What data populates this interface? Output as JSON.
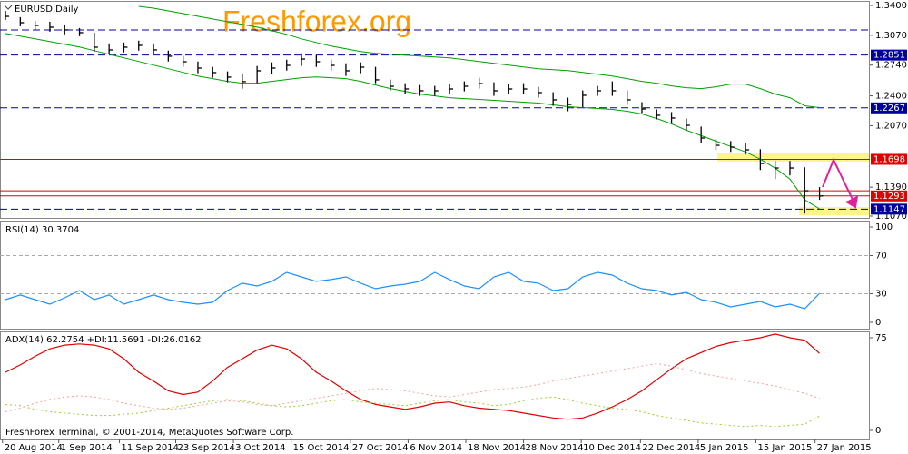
{
  "chart_data": [
    {
      "type": "ohlc",
      "title": "EURUSD,Daily",
      "watermark": "Freshforex.org",
      "color": "#000000",
      "high": [
        1.334,
        1.327,
        1.323,
        1.322,
        1.319,
        1.315,
        1.31,
        1.298,
        1.299,
        1.301,
        1.298,
        1.29,
        1.284,
        1.278,
        1.272,
        1.267,
        1.264,
        1.273,
        1.277,
        1.28,
        1.287,
        1.285,
        1.28,
        1.276,
        1.277,
        1.272,
        1.258,
        1.254,
        1.252,
        1.251,
        1.253,
        1.256,
        1.26,
        1.255,
        1.253,
        1.254,
        1.25,
        1.244,
        1.238,
        1.246,
        1.251,
        1.256,
        1.246,
        1.233,
        1.225,
        1.222,
        1.215,
        1.206,
        1.192,
        1.19,
        1.188,
        1.181,
        1.168,
        1.168,
        1.161,
        1.139
      ],
      "low": [
        1.324,
        1.317,
        1.313,
        1.311,
        1.308,
        1.306,
        1.289,
        1.286,
        1.288,
        1.29,
        1.286,
        1.278,
        1.272,
        1.265,
        1.26,
        1.255,
        1.248,
        1.254,
        1.264,
        1.268,
        1.273,
        1.272,
        1.268,
        1.262,
        1.265,
        1.254,
        1.246,
        1.242,
        1.24,
        1.24,
        1.242,
        1.245,
        1.248,
        1.24,
        1.242,
        1.242,
        1.238,
        1.229,
        1.223,
        1.227,
        1.24,
        1.24,
        1.23,
        1.221,
        1.214,
        1.21,
        1.202,
        1.188,
        1.18,
        1.178,
        1.175,
        1.158,
        1.148,
        1.152,
        1.1098,
        1.125
      ],
      "close": [
        1.3279,
        1.3209,
        1.3179,
        1.3159,
        1.3129,
        1.3099,
        1.2938,
        1.2908,
        1.2938,
        1.2958,
        1.2908,
        1.2838,
        1.2777,
        1.2707,
        1.2657,
        1.2607,
        1.2557,
        1.2677,
        1.2707,
        1.2737,
        1.2807,
        1.2777,
        1.2737,
        1.2677,
        1.2717,
        1.2577,
        1.2506,
        1.2476,
        1.2456,
        1.2456,
        1.2476,
        1.2506,
        1.2536,
        1.2456,
        1.2476,
        1.2476,
        1.2436,
        1.2356,
        1.2305,
        1.2406,
        1.2456,
        1.2456,
        1.2356,
        1.2255,
        1.2185,
        1.2155,
        1.2074,
        1.1934,
        1.1853,
        1.1833,
        1.1803,
        1.1652,
        1.1602,
        1.1602,
        1.1351,
        1.1293
      ],
      "overlays": [
        {
          "color": "#00a000",
          "values": [
            null,
            null,
            null,
            null,
            null,
            null,
            null,
            null,
            null,
            1.339,
            1.337,
            1.334,
            1.331,
            1.328,
            1.325,
            1.322,
            1.319,
            1.316,
            1.312,
            1.308,
            1.303,
            1.299,
            1.295,
            1.292,
            1.289,
            1.287,
            1.286,
            1.285,
            1.284,
            1.283,
            1.282,
            1.28,
            1.278,
            1.276,
            1.274,
            1.272,
            1.27,
            1.269,
            1.268,
            1.266,
            1.264,
            1.262,
            1.259,
            1.256,
            1.254,
            1.251,
            1.249,
            1.248,
            1.25,
            1.253,
            1.253,
            1.248,
            1.242,
            1.238,
            1.229,
            1.227
          ]
        },
        {
          "color": "#00a000",
          "values": [
            1.309,
            1.306,
            1.303,
            1.3,
            1.297,
            1.294,
            1.29,
            1.286,
            1.282,
            1.278,
            1.274,
            1.27,
            1.266,
            1.262,
            1.259,
            1.256,
            1.254,
            1.254,
            1.256,
            1.258,
            1.26,
            1.261,
            1.26,
            1.259,
            1.256,
            1.252,
            1.248,
            1.245,
            1.242,
            1.24,
            1.238,
            1.237,
            1.236,
            1.235,
            1.234,
            1.233,
            1.232,
            1.23,
            1.228,
            1.227,
            1.226,
            1.225,
            1.223,
            1.22,
            1.215,
            1.209,
            1.202,
            1.196,
            1.19,
            1.184,
            1.178,
            1.17,
            1.16,
            1.148,
            1.125,
            1.115
          ]
        }
      ],
      "lines": [
        {
          "value": 1.3129,
          "color": "#0000a0",
          "style": "dashed"
        },
        {
          "value": 1.2851,
          "label": "1.2851",
          "color": "#0000a0",
          "style": "dashed"
        },
        {
          "value": 1.2267,
          "label": "1.2267",
          "color": "#0000a0",
          "style": "dashed"
        },
        {
          "value": 1.1698,
          "label": "1.1698",
          "color": "#e00000",
          "style": "solid"
        },
        {
          "value": 1.135,
          "color": "#e00000",
          "style": "solid"
        },
        {
          "value": 1.1293,
          "label": "1.1293",
          "color": "#e00000",
          "style": "solid"
        },
        {
          "value": 1.1147,
          "label": "1.1147",
          "color": "#0000a0",
          "style": "dashed"
        }
      ],
      "xlim": [
        -0.37,
        58.4
      ],
      "xticks": [
        {
          "value": -0.2,
          "label": "20 Aug 2014"
        },
        {
          "value": 3.6,
          "label": "1 Sep 2014"
        },
        {
          "value": 7.7,
          "label": "11 Sep 2014"
        },
        {
          "value": 11.5,
          "label": "23 Sep 2014"
        },
        {
          "value": 15.4,
          "label": "3 Oct 2014"
        },
        {
          "value": 19.3,
          "label": "15 Oct 2014"
        },
        {
          "value": 23.3,
          "label": "27 Oct 2014"
        },
        {
          "value": 27.2,
          "label": "6 Nov 2014"
        },
        {
          "value": 31.1,
          "label": "18 Nov 2014"
        },
        {
          "value": 35.0,
          "label": "28 Nov 2014"
        },
        {
          "value": 38.9,
          "label": "10 Dec 2014"
        },
        {
          "value": 42.9,
          "label": "22 Dec 2014"
        },
        {
          "value": 46.8,
          "label": "5 Jan 2015"
        },
        {
          "value": 50.7,
          "label": "15 Jan 2015"
        },
        {
          "value": 54.7,
          "label": "27 Jan 2015"
        }
      ],
      "ylim": [
        1.105,
        1.344
      ],
      "yticks": [
        {
          "value": 1.34,
          "label": "1.3400"
        },
        {
          "value": 1.307,
          "label": "1.3070"
        },
        {
          "value": 1.274,
          "label": "1.2740"
        },
        {
          "value": 1.24,
          "label": "1.2400"
        },
        {
          "value": 1.207,
          "label": "1.2070"
        },
        {
          "value": 1.139,
          "label": "1.1390"
        },
        {
          "value": 1.107,
          "label": "1.1070"
        }
      ]
    },
    {
      "type": "line",
      "title": "RSI(14) 30.3704",
      "ylim": [
        -6.7,
        105.7
      ],
      "yticks": [
        100,
        70,
        30,
        0
      ],
      "levels": [
        70,
        30
      ],
      "series": [
        {
          "color": "#1e90ff",
          "style": "solid",
          "values": [
            23.8,
            28.6,
            23.8,
            19.0,
            25.7,
            33.3,
            23.8,
            28.6,
            19.0,
            23.8,
            28.6,
            23.8,
            21.0,
            19.0,
            21.0,
            33.3,
            41.0,
            38.1,
            42.9,
            52.4,
            47.6,
            42.9,
            44.8,
            47.6,
            41.0,
            35.2,
            38.1,
            40.0,
            42.9,
            52.4,
            44.8,
            38.1,
            35.2,
            47.6,
            52.4,
            42.9,
            41.0,
            33.3,
            35.2,
            47.6,
            52.4,
            49.5,
            41.0,
            35.2,
            33.3,
            28.6,
            31.4,
            23.8,
            21.0,
            16.2,
            19.0,
            21.9,
            16.2,
            19.0,
            14.3,
            30.4
          ]
        }
      ]
    },
    {
      "type": "line",
      "title": "ADX(14) 62.2754 +DI:11.5691 -DI:26.0162",
      "footer": "FreshForex Terminal, © 2001-2014, MetaQuotes Software Corp.",
      "ylim": [
        -7.4,
        79.4
      ],
      "yticks": [
        75,
        0
      ],
      "series": [
        {
          "color": "#e00000",
          "style": "solid",
          "values": [
            47,
            53,
            60,
            66,
            69,
            70,
            69,
            66,
            58,
            47,
            40,
            32,
            29,
            31,
            40,
            51,
            58,
            65,
            69,
            66,
            58,
            47,
            40,
            32,
            25,
            21,
            19,
            17,
            19,
            22,
            23,
            20,
            18,
            17,
            16,
            14,
            12,
            10,
            9,
            10,
            14,
            19,
            25,
            32,
            41,
            50,
            58,
            63,
            68,
            71,
            73,
            75,
            78,
            75,
            73,
            62.3
          ]
        },
        {
          "color": "#9acd32",
          "style": "dotted",
          "values": [
            21,
            20,
            17,
            15,
            14,
            13,
            12,
            12,
            13,
            14,
            16,
            18,
            20,
            22,
            24,
            25,
            24,
            22,
            20,
            19,
            20,
            22,
            24,
            25,
            23,
            22,
            21,
            20,
            22,
            24,
            25,
            23,
            22,
            20,
            21,
            24,
            26,
            27,
            25,
            22,
            20,
            18,
            17,
            15,
            12,
            10,
            8,
            6,
            5,
            4,
            3,
            4,
            3,
            4,
            5,
            11.6
          ]
        },
        {
          "color": "#f4a0a0",
          "style": "dotted",
          "values": [
            15,
            18,
            22,
            25,
            27,
            28,
            27,
            25,
            22,
            20,
            18,
            17,
            18,
            20,
            22,
            24,
            23,
            21,
            20,
            22,
            24,
            26,
            28,
            30,
            32,
            34,
            33,
            32,
            30,
            28,
            27,
            29,
            31,
            33,
            34,
            35,
            37,
            40,
            42,
            44,
            46,
            48,
            50,
            52,
            54,
            52,
            49,
            46,
            44,
            42,
            40,
            38,
            36,
            33,
            30,
            26.0
          ]
        }
      ]
    }
  ]
}
